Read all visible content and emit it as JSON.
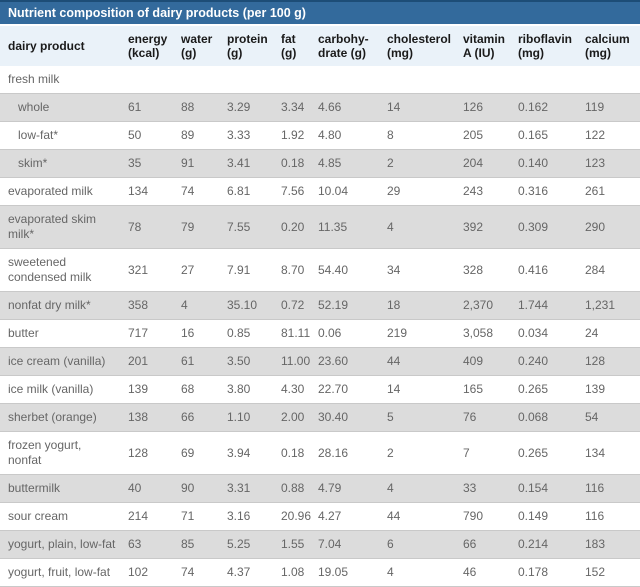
{
  "header": {
    "title": "Nutrient composition of dairy products (per 100 g)"
  },
  "colors": {
    "title_bar": "#336a9c",
    "title_bar_top_edge": "#1d4d77",
    "header_row_bg": "#eaf2f9",
    "stripe_bg": "#dcdcdc",
    "stripe_border": "#c9c9c9",
    "data_text": "#666666",
    "header_text": "#1a1a1a"
  },
  "chart_data": {
    "type": "table",
    "title": "Nutrient composition of dairy products (per 100 g)",
    "columns": [
      {
        "name": "dairy-product",
        "lines": [
          "dairy product"
        ]
      },
      {
        "name": "energy",
        "lines": [
          "energy",
          "(kcal)"
        ]
      },
      {
        "name": "water",
        "lines": [
          "water",
          "(g)"
        ]
      },
      {
        "name": "protein",
        "lines": [
          "protein",
          "(g)"
        ]
      },
      {
        "name": "fat",
        "lines": [
          "fat",
          "(g)"
        ]
      },
      {
        "name": "carbohydrate",
        "lines": [
          "carbohy-",
          "drate (g)"
        ]
      },
      {
        "name": "cholesterol",
        "lines": [
          "cholesterol",
          "(mg)"
        ]
      },
      {
        "name": "vitamin-a",
        "lines": [
          "vitamin",
          "A (IU)"
        ]
      },
      {
        "name": "riboflavin",
        "lines": [
          "riboflavin",
          "(mg)"
        ]
      },
      {
        "name": "calcium",
        "lines": [
          "calcium",
          "(mg)"
        ]
      }
    ],
    "rows": [
      {
        "product": "fresh milk",
        "group": true,
        "indent": false,
        "values": [
          "",
          "",
          "",
          "",
          "",
          "",
          "",
          "",
          ""
        ]
      },
      {
        "product": "whole",
        "group": false,
        "indent": true,
        "values": [
          "61",
          "88",
          "3.29",
          "3.34",
          "4.66",
          "14",
          "126",
          "0.162",
          "119"
        ]
      },
      {
        "product": "low-fat*",
        "group": false,
        "indent": true,
        "values": [
          "50",
          "89",
          "3.33",
          "1.92",
          "4.80",
          "8",
          "205",
          "0.165",
          "122"
        ]
      },
      {
        "product": "skim*",
        "group": false,
        "indent": true,
        "values": [
          "35",
          "91",
          "3.41",
          "0.18",
          "4.85",
          "2",
          "204",
          "0.140",
          "123"
        ]
      },
      {
        "product": "evaporated milk",
        "group": false,
        "indent": false,
        "values": [
          "134",
          "74",
          "6.81",
          "7.56",
          "10.04",
          "29",
          "243",
          "0.316",
          "261"
        ]
      },
      {
        "product": "evaporated skim milk*",
        "group": false,
        "indent": false,
        "values": [
          "78",
          "79",
          "7.55",
          "0.20",
          "11.35",
          "4",
          "392",
          "0.309",
          "290"
        ]
      },
      {
        "product": "sweetened condensed milk",
        "group": false,
        "indent": false,
        "values": [
          "321",
          "27",
          "7.91",
          "8.70",
          "54.40",
          "34",
          "328",
          "0.416",
          "284"
        ]
      },
      {
        "product": "nonfat dry milk*",
        "group": false,
        "indent": false,
        "values": [
          "358",
          "4",
          "35.10",
          "0.72",
          "52.19",
          "18",
          "2,370",
          "1.744",
          "1,231"
        ]
      },
      {
        "product": "butter",
        "group": false,
        "indent": false,
        "values": [
          "717",
          "16",
          "0.85",
          "81.11",
          "0.06",
          "219",
          "3,058",
          "0.034",
          "24"
        ]
      },
      {
        "product": "ice cream (vanilla)",
        "group": false,
        "indent": false,
        "values": [
          "201",
          "61",
          "3.50",
          "11.00",
          "23.60",
          "44",
          "409",
          "0.240",
          "128"
        ]
      },
      {
        "product": "ice milk (vanilla)",
        "group": false,
        "indent": false,
        "values": [
          "139",
          "68",
          "3.80",
          "4.30",
          "22.70",
          "14",
          "165",
          "0.265",
          "139"
        ]
      },
      {
        "product": "sherbet (orange)",
        "group": false,
        "indent": false,
        "values": [
          "138",
          "66",
          "1.10",
          "2.00",
          "30.40",
          "5",
          "76",
          "0.068",
          "54"
        ]
      },
      {
        "product": "frozen yogurt, nonfat",
        "group": false,
        "indent": false,
        "values": [
          "128",
          "69",
          "3.94",
          "0.18",
          "28.16",
          "2",
          "7",
          "0.265",
          "134"
        ]
      },
      {
        "product": "buttermilk",
        "group": false,
        "indent": false,
        "values": [
          "40",
          "90",
          "3.31",
          "0.88",
          "4.79",
          "4",
          "33",
          "0.154",
          "116"
        ]
      },
      {
        "product": "sour cream",
        "group": false,
        "indent": false,
        "values": [
          "214",
          "71",
          "3.16",
          "20.96",
          "4.27",
          "44",
          "790",
          "0.149",
          "116"
        ]
      },
      {
        "product": "yogurt, plain, low-fat",
        "group": false,
        "indent": false,
        "values": [
          "63",
          "85",
          "5.25",
          "1.55",
          "7.04",
          "6",
          "66",
          "0.214",
          "183"
        ]
      },
      {
        "product": "yogurt, fruit, low-fat",
        "group": false,
        "indent": false,
        "values": [
          "102",
          "74",
          "4.37",
          "1.08",
          "19.05",
          "4",
          "46",
          "0.178",
          "152"
        ]
      }
    ]
  }
}
